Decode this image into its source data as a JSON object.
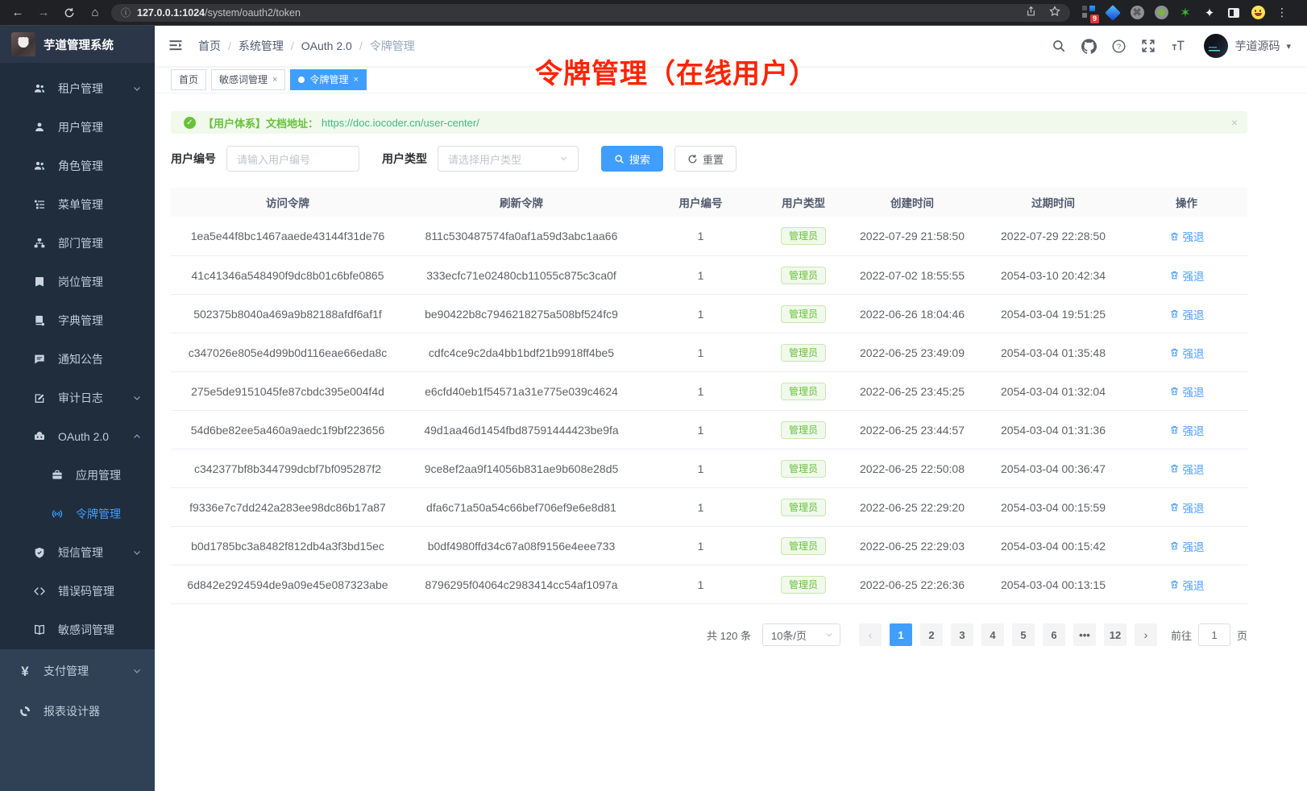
{
  "browser": {
    "url_host": "127.0.0.1:1024",
    "url_path": "/system/oauth2/token",
    "extension_badge": "9"
  },
  "sidebar": {
    "logo_title": "芋道管理系统",
    "menu": [
      {
        "icon": "tenant-icon",
        "label": "租户管理",
        "level": 2,
        "chevron": "down"
      },
      {
        "icon": "user-icon",
        "label": "用户管理",
        "level": 2
      },
      {
        "icon": "role-icon",
        "label": "角色管理",
        "level": 2
      },
      {
        "icon": "menu-list-icon",
        "label": "菜单管理",
        "level": 2
      },
      {
        "icon": "dept-icon",
        "label": "部门管理",
        "level": 2
      },
      {
        "icon": "post-icon",
        "label": "岗位管理",
        "level": 2
      },
      {
        "icon": "dict-icon",
        "label": "字典管理",
        "level": 2
      },
      {
        "icon": "notice-icon",
        "label": "通知公告",
        "level": 2
      },
      {
        "icon": "audit-icon",
        "label": "审计日志",
        "level": 2,
        "chevron": "down"
      },
      {
        "icon": "oauth-icon",
        "label": "OAuth 2.0",
        "level": 2,
        "chevron": "up"
      },
      {
        "icon": "app-icon",
        "label": "应用管理",
        "level": 3
      },
      {
        "icon": "token-icon",
        "label": "令牌管理",
        "level": 3,
        "active": true
      },
      {
        "icon": "sms-icon",
        "label": "短信管理",
        "level": 2,
        "chevron": "down"
      },
      {
        "icon": "errcode-icon",
        "label": "错误码管理",
        "level": 2
      },
      {
        "icon": "sensitive-icon",
        "label": "敏感词管理",
        "level": 2
      }
    ],
    "bottom_menu": [
      {
        "icon": "pay-icon",
        "label": "支付管理",
        "chevron": "down"
      },
      {
        "icon": "report-icon",
        "label": "报表设计器"
      }
    ]
  },
  "navbar": {
    "breadcrumb": [
      "首页",
      "系统管理",
      "OAuth 2.0",
      "令牌管理"
    ],
    "user_name": "芋道源码"
  },
  "tags": [
    {
      "label": "首页",
      "closable": false,
      "active": false
    },
    {
      "label": "敏感词管理",
      "closable": true,
      "active": false
    },
    {
      "label": "令牌管理",
      "closable": true,
      "active": true
    }
  ],
  "annotation": {
    "text": "令牌管理（在线用户）"
  },
  "alert": {
    "text": "【用户体系】文档地址：",
    "link": "https://doc.iocoder.cn/user-center/",
    "close_label": "×"
  },
  "filters": {
    "user_id_label": "用户编号",
    "user_id_placeholder": "请输入用户编号",
    "user_type_label": "用户类型",
    "user_type_placeholder": "请选择用户类型",
    "search_label": "搜索",
    "reset_label": "重置"
  },
  "table": {
    "columns": [
      "访问令牌",
      "刷新令牌",
      "用户编号",
      "用户类型",
      "创建时间",
      "过期时间",
      "操作"
    ],
    "badge_label": "管理员",
    "action_label": "强退",
    "rows": [
      {
        "access": "1ea5e44f8bc1467aaede43144f31de76",
        "refresh": "811c530487574fa0af1a59d3abc1aa66",
        "user_id": "1",
        "created": "2022-07-29 21:58:50",
        "expires": "2022-07-29 22:28:50"
      },
      {
        "access": "41c41346a548490f9dc8b01c6bfe0865",
        "refresh": "333ecfc71e02480cb11055c875c3ca0f",
        "user_id": "1",
        "created": "2022-07-02 18:55:55",
        "expires": "2054-03-10 20:42:34"
      },
      {
        "access": "502375b8040a469a9b82188afdf6af1f",
        "refresh": "be90422b8c7946218275a508bf524fc9",
        "user_id": "1",
        "created": "2022-06-26 18:04:46",
        "expires": "2054-03-04 19:51:25"
      },
      {
        "access": "c347026e805e4d99b0d116eae66eda8c",
        "refresh": "cdfc4ce9c2da4bb1bdf21b9918ff4be5",
        "user_id": "1",
        "created": "2022-06-25 23:49:09",
        "expires": "2054-03-04 01:35:48"
      },
      {
        "access": "275e5de9151045fe87cbdc395e004f4d",
        "refresh": "e6cfd40eb1f54571a31e775e039c4624",
        "user_id": "1",
        "created": "2022-06-25 23:45:25",
        "expires": "2054-03-04 01:32:04"
      },
      {
        "access": "54d6be82ee5a460a9aedc1f9bf223656",
        "refresh": "49d1aa46d1454fbd87591444423be9fa",
        "user_id": "1",
        "created": "2022-06-25 23:44:57",
        "expires": "2054-03-04 01:31:36"
      },
      {
        "access": "c342377bf8b344799dcbf7bf095287f2",
        "refresh": "9ce8ef2aa9f14056b831ae9b608e28d5",
        "user_id": "1",
        "created": "2022-06-25 22:50:08",
        "expires": "2054-03-04 00:36:47"
      },
      {
        "access": "f9336e7c7dd242a283ee98dc86b17a87",
        "refresh": "dfa6c71a50a54c66bef706ef9e6e8d81",
        "user_id": "1",
        "created": "2022-06-25 22:29:20",
        "expires": "2054-03-04 00:15:59"
      },
      {
        "access": "b0d1785bc3a8482f812db4a3f3bd15ec",
        "refresh": "b0df4980ffd34c67a08f9156e4eee733",
        "user_id": "1",
        "created": "2022-06-25 22:29:03",
        "expires": "2054-03-04 00:15:42"
      },
      {
        "access": "6d842e2924594de9a09e45e087323abe",
        "refresh": "8796295f04064c2983414cc54af1097a",
        "user_id": "1",
        "created": "2022-06-25 22:26:36",
        "expires": "2054-03-04 00:13:15"
      }
    ]
  },
  "pagination": {
    "total_label": "共 120 条",
    "page_size": "10条/页",
    "pages": [
      "1",
      "2",
      "3",
      "4",
      "5",
      "6",
      "...",
      "12"
    ],
    "active_page": "1",
    "prev": "‹",
    "next": "›",
    "goto_label": "前往",
    "goto_value": "1",
    "page_suffix": "页"
  },
  "colors": {
    "accent": "#409eff",
    "success": "#67c23a",
    "annotation_red": "#fe2400",
    "sidebar_bg": "#1f2d3d",
    "sidebar_bottom_bg": "#304156"
  }
}
